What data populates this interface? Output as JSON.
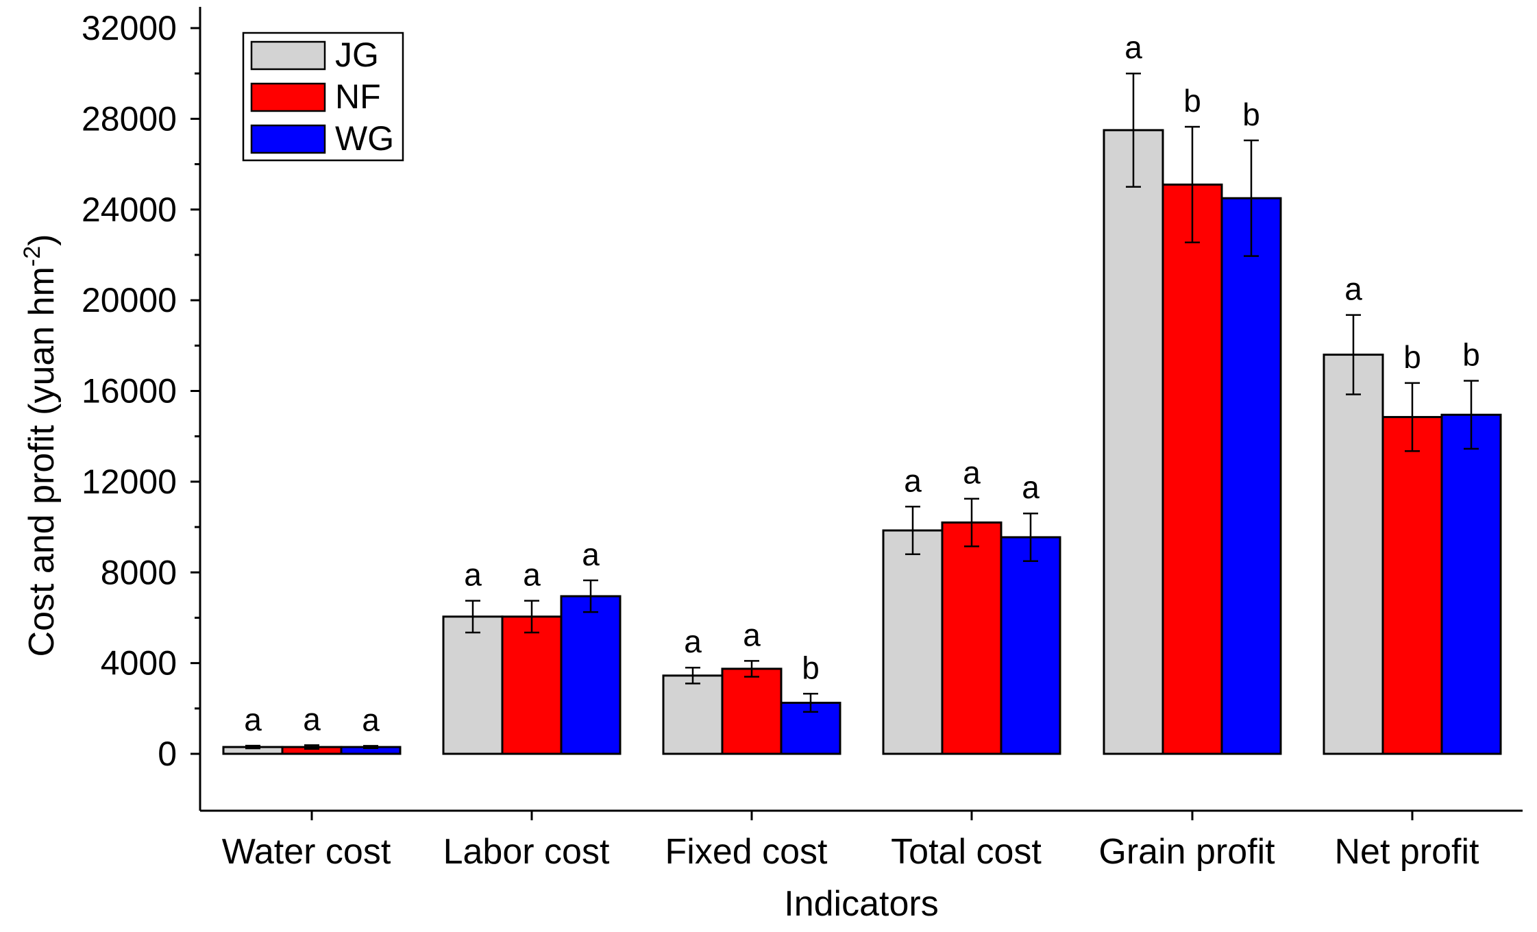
{
  "chart_data": {
    "type": "bar",
    "title": "",
    "xlabel": "Indicators",
    "ylabel": "Cost and profit (yuan hm",
    "ylabel_sup": "-2",
    "ylabel_close": ")",
    "ylim": [
      -2500,
      32000
    ],
    "yticks": [
      0,
      4000,
      8000,
      12000,
      16000,
      20000,
      24000,
      28000,
      32000
    ],
    "ytick_labels": [
      "0",
      "4000",
      "8000",
      "12000",
      "16000",
      "20000",
      "24000",
      "28000",
      "32000"
    ],
    "categories": [
      "Water cost",
      "Labor cost",
      "Fixed cost",
      "Total cost",
      "Grain profit",
      "Net profit"
    ],
    "legend_position": "top-left",
    "series": [
      {
        "name": "JG",
        "color": "#d3d3d3",
        "values": [
          300,
          6050,
          3450,
          9850,
          27500,
          17600
        ],
        "errors": [
          60,
          700,
          350,
          1050,
          2500,
          1750
        ],
        "significance": [
          "a",
          "a",
          "a",
          "a",
          "a",
          "a"
        ]
      },
      {
        "name": "NF",
        "color": "#ff0000",
        "values": [
          300,
          6050,
          3750,
          10200,
          25100,
          14850
        ],
        "errors": [
          80,
          700,
          350,
          1050,
          2550,
          1500
        ],
        "significance": [
          "a",
          "a",
          "a",
          "a",
          "b",
          "b"
        ]
      },
      {
        "name": "WG",
        "color": "#0000ff",
        "values": [
          300,
          6950,
          2250,
          9550,
          24500,
          14950
        ],
        "errors": [
          50,
          700,
          400,
          1050,
          2550,
          1500
        ],
        "significance": [
          "a",
          "a",
          "b",
          "a",
          "b",
          "b"
        ]
      }
    ]
  }
}
